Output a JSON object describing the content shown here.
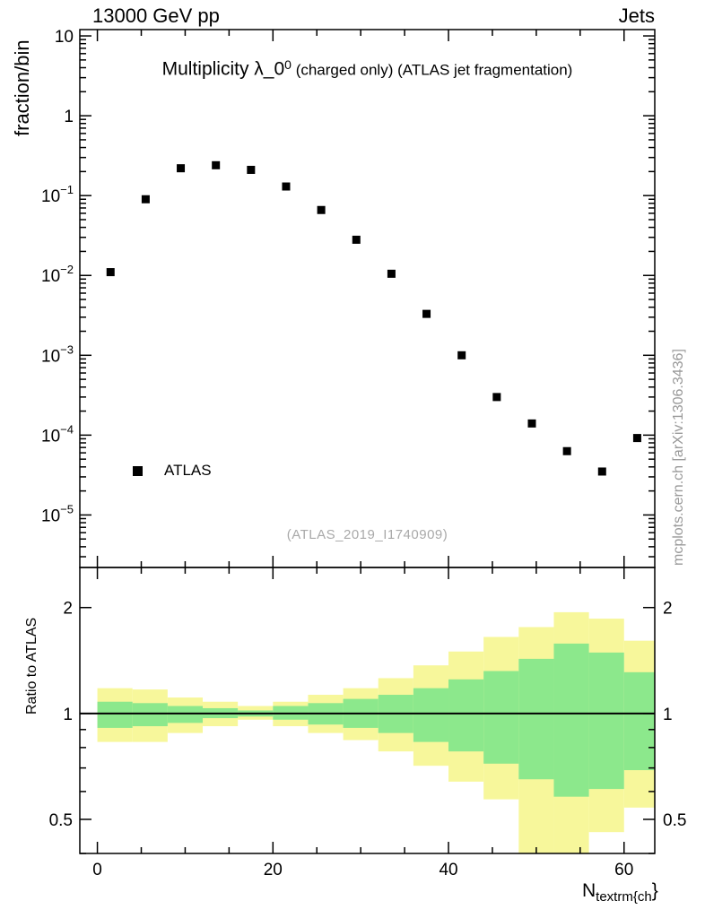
{
  "page": {
    "header_left": "13000 GeV pp",
    "header_right": "Jets"
  },
  "main_panel": {
    "y_axis_label": "fraction/bin",
    "title": {
      "main": "Multiplicity λ_0",
      "sup": "0",
      "suffix": " (charged only) (ATLAS jet fragmentation)"
    },
    "legend": {
      "label": "ATLAS",
      "marker": "filled-square",
      "marker_color": "#000000"
    },
    "watermark": "(ATLAS_2019_I1740909)",
    "side_note": "mcplots.cern.ch [arXiv:1306.3436]"
  },
  "ratio_panel": {
    "y_axis_label": "Ratio to ATLAS",
    "x_axis_label": {
      "main": "N",
      "sub": "textrm{ch",
      "close": "}"
    }
  },
  "chart_data": [
    {
      "type": "scatter",
      "title": "Multiplicity λ_0^0 (charged only) (ATLAS jet fragmentation)",
      "xlabel": "N_textrm{ch}",
      "ylabel": "fraction/bin",
      "xscale": "linear",
      "yscale": "log",
      "xlim": [
        -2,
        63.5
      ],
      "ylim": [
        2.2e-06,
        12
      ],
      "x_major_ticks": [
        0,
        20,
        40,
        60
      ],
      "x_minor_step": 5,
      "y_major_ticks": [
        {
          "value": 10,
          "base": "10",
          "exp": ""
        },
        {
          "value": 1,
          "base": "1",
          "exp": ""
        },
        {
          "value": 0.1,
          "base": "10",
          "exp": "−1"
        },
        {
          "value": 0.01,
          "base": "10",
          "exp": "−2"
        },
        {
          "value": 0.001,
          "base": "10",
          "exp": "−3"
        },
        {
          "value": 0.0001,
          "base": "10",
          "exp": "−4"
        },
        {
          "value": 1e-05,
          "base": "10",
          "exp": "−5"
        }
      ],
      "series": [
        {
          "name": "ATLAS",
          "marker": "filled-square",
          "color": "#000000",
          "x": [
            1.5,
            5.5,
            9.5,
            13.5,
            17.5,
            21.5,
            25.5,
            29.5,
            33.5,
            37.5,
            41.5,
            45.5,
            49.5,
            53.5,
            57.5,
            61.5
          ],
          "y": [
            0.011,
            0.09,
            0.22,
            0.24,
            0.21,
            0.13,
            0.066,
            0.028,
            0.0105,
            0.0033,
            0.001,
            0.0003,
            0.00014,
            6.3e-05,
            3.5e-05,
            9.2e-05
          ]
        }
      ]
    },
    {
      "type": "area",
      "ylabel": "Ratio to ATLAS",
      "xscale": "linear",
      "yscale": "log",
      "xlim": [
        -2,
        63.5
      ],
      "ylim": [
        0.4,
        2.6
      ],
      "x_major_ticks": [
        0,
        20,
        40,
        60
      ],
      "x_minor_step": 5,
      "y_major_ticks": [
        {
          "value": 0.5,
          "label": "0.5"
        },
        {
          "value": 1,
          "label": "1"
        },
        {
          "value": 2,
          "label": "2"
        }
      ],
      "y_minor_ticks": [
        0.4,
        0.6,
        0.7,
        0.8,
        0.9
      ],
      "reference_line": 1,
      "bin_edges": [
        0,
        4,
        8,
        12,
        16,
        20,
        24,
        28,
        32,
        36,
        40,
        44,
        48,
        52,
        56,
        60,
        64
      ],
      "bands": [
        {
          "name": "uncertainty-outer",
          "color": "#f7f79b",
          "high": [
            1.18,
            1.17,
            1.11,
            1.08,
            1.05,
            1.08,
            1.13,
            1.18,
            1.26,
            1.37,
            1.5,
            1.65,
            1.76,
            1.94,
            1.86,
            1.61
          ],
          "low": [
            0.83,
            0.83,
            0.88,
            0.92,
            0.96,
            0.92,
            0.88,
            0.84,
            0.78,
            0.71,
            0.64,
            0.57,
            0.38,
            0.36,
            0.46,
            0.54
          ]
        },
        {
          "name": "uncertainty-inner",
          "color": "#8ce88c",
          "high": [
            1.08,
            1.07,
            1.05,
            1.035,
            1.02,
            1.05,
            1.07,
            1.1,
            1.13,
            1.18,
            1.25,
            1.32,
            1.43,
            1.58,
            1.49,
            1.31
          ],
          "low": [
            0.91,
            0.92,
            0.94,
            0.97,
            0.98,
            0.96,
            0.93,
            0.91,
            0.88,
            0.83,
            0.78,
            0.72,
            0.65,
            0.58,
            0.61,
            0.69
          ]
        }
      ]
    }
  ]
}
